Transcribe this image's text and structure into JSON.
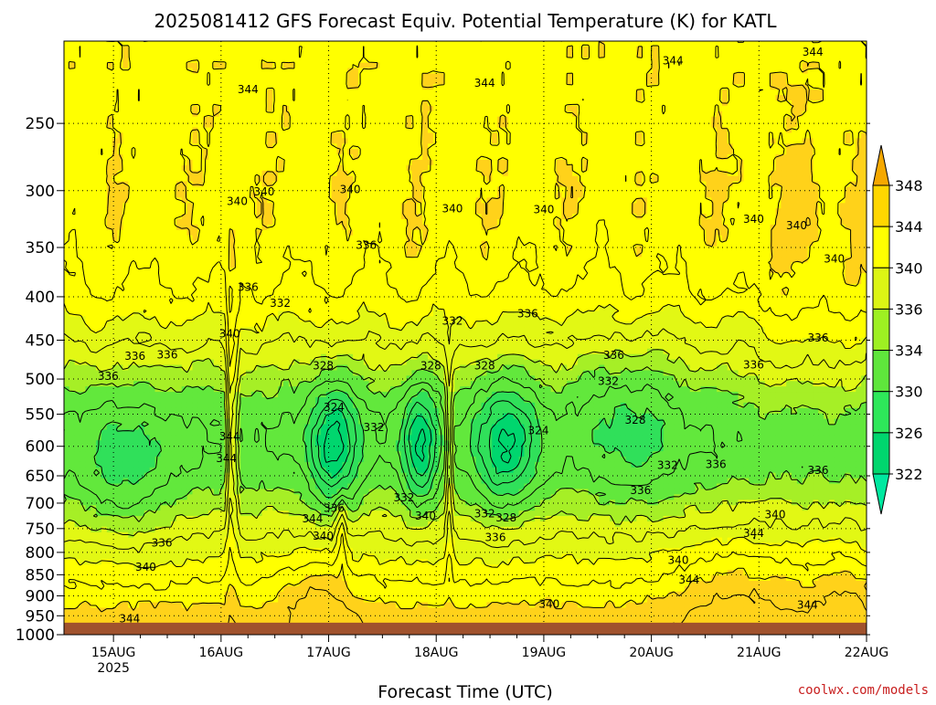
{
  "chart_data": {
    "type": "heatmap",
    "title": "2025081412 GFS Forecast Equiv. Potential Temperature (K) for KATL",
    "xlabel": "Forecast Time (UTC)",
    "ylabel": "",
    "credit": "coolwx.com/models",
    "x_ticks": [
      "15AUG",
      "16AUG",
      "17AUG",
      "18AUG",
      "19AUG",
      "20AUG",
      "21AUG",
      "22AUG"
    ],
    "x_year_label": "2025",
    "x_range_days": [
      14.54,
      22.0
    ],
    "y_scale": "log",
    "y_reversed": true,
    "y_ticks": [
      250,
      300,
      350,
      400,
      450,
      500,
      550,
      600,
      650,
      700,
      750,
      800,
      850,
      900,
      950,
      1000
    ],
    "y_range_hpa": [
      200,
      1000
    ],
    "surface_underground_below_hpa": 968,
    "colorbar": {
      "labels": [
        322,
        326,
        330,
        334,
        336,
        340,
        344,
        348
      ],
      "colors": [
        "#00d66e",
        "#2ee85a",
        "#5fe63c",
        "#9ef022",
        "#dcf514",
        "#ffff00",
        "#ffd700",
        "#f5b800"
      ],
      "extend_low_color": "#00e8a0",
      "extend_high_color": "#f5a800"
    },
    "fill_colors": {
      "lt_326": "#00d66e",
      "326_330": "#30e05a",
      "330_334": "#62e83c",
      "334_336": "#a6ef26",
      "336_340": "#e2f814",
      "340_344": "#ffff00",
      "344_348": "#ffd21a",
      "ge_348": "#f5b000",
      "ground": "#a0522d"
    },
    "contour_levels": [
      324,
      326,
      328,
      330,
      332,
      334,
      336,
      338,
      340,
      342,
      344,
      346
    ],
    "contour_labels": [
      {
        "t": 15.5,
        "p": 468,
        "v": "336"
      },
      {
        "t": 15.2,
        "p": 470,
        "v": "336"
      },
      {
        "t": 14.95,
        "p": 496,
        "v": "336"
      },
      {
        "t": 16.08,
        "p": 442,
        "v": "340"
      },
      {
        "t": 16.08,
        "p": 584,
        "v": "344"
      },
      {
        "t": 16.05,
        "p": 620,
        "v": "344"
      },
      {
        "t": 16.25,
        "p": 390,
        "v": "336"
      },
      {
        "t": 16.55,
        "p": 407,
        "v": "332"
      },
      {
        "t": 16.95,
        "p": 482,
        "v": "328"
      },
      {
        "t": 17.05,
        "p": 540,
        "v": "324"
      },
      {
        "t": 17.42,
        "p": 570,
        "v": "332"
      },
      {
        "t": 17.05,
        "p": 710,
        "v": "336"
      },
      {
        "t": 16.85,
        "p": 730,
        "v": "344"
      },
      {
        "t": 16.95,
        "p": 765,
        "v": "340"
      },
      {
        "t": 17.35,
        "p": 348,
        "v": "336"
      },
      {
        "t": 17.95,
        "p": 482,
        "v": "328"
      },
      {
        "t": 18.15,
        "p": 427,
        "v": "332"
      },
      {
        "t": 17.7,
        "p": 690,
        "v": "332"
      },
      {
        "t": 17.9,
        "p": 725,
        "v": "340"
      },
      {
        "t": 18.45,
        "p": 482,
        "v": "328"
      },
      {
        "t": 18.45,
        "p": 720,
        "v": "332"
      },
      {
        "t": 18.65,
        "p": 728,
        "v": "328"
      },
      {
        "t": 18.55,
        "p": 768,
        "v": "336"
      },
      {
        "t": 18.95,
        "p": 575,
        "v": "324"
      },
      {
        "t": 18.85,
        "p": 419,
        "v": "336"
      },
      {
        "t": 19.65,
        "p": 469,
        "v": "336"
      },
      {
        "t": 19.6,
        "p": 503,
        "v": "332"
      },
      {
        "t": 19.85,
        "p": 559,
        "v": "328"
      },
      {
        "t": 20.15,
        "p": 632,
        "v": "332"
      },
      {
        "t": 19.9,
        "p": 676,
        "v": "336"
      },
      {
        "t": 20.6,
        "p": 630,
        "v": "336"
      },
      {
        "t": 20.95,
        "p": 481,
        "v": "336"
      },
      {
        "t": 21.55,
        "p": 447,
        "v": "336"
      },
      {
        "t": 21.55,
        "p": 640,
        "v": "336"
      },
      {
        "t": 21.15,
        "p": 722,
        "v": "340"
      },
      {
        "t": 20.95,
        "p": 760,
        "v": "344"
      },
      {
        "t": 20.25,
        "p": 817,
        "v": "340"
      },
      {
        "t": 20.35,
        "p": 862,
        "v": "344"
      },
      {
        "t": 19.05,
        "p": 920,
        "v": "340"
      },
      {
        "t": 15.3,
        "p": 833,
        "v": "340"
      },
      {
        "t": 15.45,
        "p": 780,
        "v": "336"
      },
      {
        "t": 15.15,
        "p": 958,
        "v": "344"
      },
      {
        "t": 21.45,
        "p": 923,
        "v": "344"
      },
      {
        "t": 21.7,
        "p": 361,
        "v": "340"
      },
      {
        "t": 21.35,
        "p": 330,
        "v": "340"
      },
      {
        "t": 20.95,
        "p": 324,
        "v": "340"
      },
      {
        "t": 16.4,
        "p": 301,
        "v": "340"
      },
      {
        "t": 16.15,
        "p": 309,
        "v": "340"
      },
      {
        "t": 17.2,
        "p": 299,
        "v": "340"
      },
      {
        "t": 18.15,
        "p": 315,
        "v": "340"
      },
      {
        "t": 19.0,
        "p": 316,
        "v": "340"
      },
      {
        "t": 16.25,
        "p": 228,
        "v": "344"
      },
      {
        "t": 18.45,
        "p": 224,
        "v": "344"
      },
      {
        "t": 20.2,
        "p": 211,
        "v": "344"
      },
      {
        "t": 21.5,
        "p": 206,
        "v": "344"
      }
    ]
  }
}
